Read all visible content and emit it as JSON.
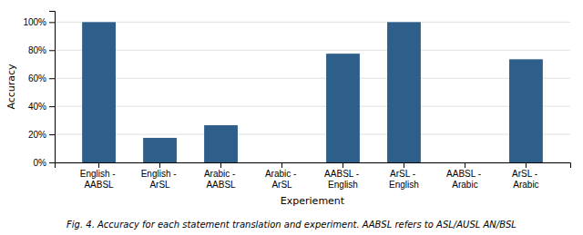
{
  "chart_data": {
    "type": "bar",
    "categories": [
      "English - \nAABSL",
      "English - \nArSL",
      "Arabic - \nAABSL",
      "Arabic - \nArSL",
      "AABSL - \nEnglish",
      "ArSL - \nEnglish",
      "AABSL - \nArabic",
      "ArSL - \nArabic"
    ],
    "values": [
      1.0,
      0.175,
      0.265,
      0.0,
      0.775,
      1.0,
      0.0,
      0.735
    ],
    "color": "#2d5f8a",
    "xlabel": "Experiement",
    "ylabel": "Accuracy",
    "ylim": [
      0,
      1.08
    ],
    "yticks": [
      {
        "value": 0.0,
        "label": "0%"
      },
      {
        "value": 0.2,
        "label": "20%"
      },
      {
        "value": 0.4,
        "label": "40%"
      },
      {
        "value": 0.6,
        "label": "60%"
      },
      {
        "value": 0.8,
        "label": "80%"
      },
      {
        "value": 1.0,
        "label": "100%"
      }
    ],
    "grid": true,
    "caption": "Fig. 4. Accuracy for each statement translation and experiment. AABSL refers to ASL/AUSL AN/BSL"
  }
}
